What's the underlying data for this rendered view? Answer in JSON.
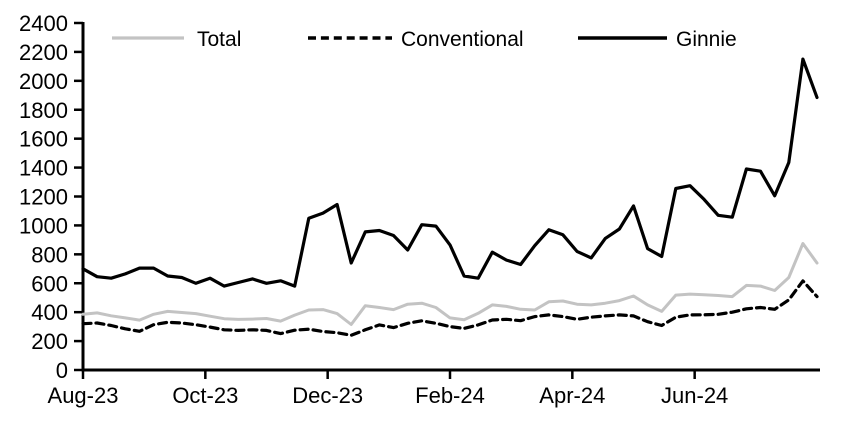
{
  "chart_data": {
    "type": "line",
    "title": "",
    "xlabel": "",
    "ylabel": "",
    "ylim": [
      0,
      2400
    ],
    "y_ticks": [
      0,
      200,
      400,
      600,
      800,
      1000,
      1200,
      1400,
      1600,
      1800,
      2000,
      2200,
      2400
    ],
    "x_tick_labels": [
      "Aug-23",
      "Oct-23",
      "Dec-23",
      "Feb-24",
      "Apr-24",
      "Jun-24"
    ],
    "x_tick_months": [
      0,
      2,
      4,
      6,
      8,
      10
    ],
    "x_axis_months": 12,
    "grid": false,
    "legend_position": "top",
    "series": [
      {
        "name": "Total",
        "style": "solid",
        "color": "#c3c3c3",
        "values": [
          385,
          395,
          375,
          360,
          345,
          385,
          405,
          398,
          390,
          372,
          355,
          350,
          352,
          356,
          338,
          380,
          415,
          418,
          390,
          315,
          445,
          432,
          418,
          455,
          462,
          432,
          360,
          348,
          392,
          450,
          440,
          420,
          415,
          472,
          477,
          455,
          450,
          462,
          480,
          512,
          450,
          405,
          518,
          525,
          520,
          515,
          508,
          585,
          580,
          550,
          640,
          875,
          740
        ]
      },
      {
        "name": "Conventional",
        "style": "dashed",
        "color": "#000000",
        "values": [
          320,
          325,
          308,
          285,
          268,
          313,
          330,
          325,
          313,
          297,
          278,
          274,
          278,
          274,
          252,
          275,
          282,
          266,
          258,
          240,
          278,
          312,
          293,
          323,
          340,
          323,
          300,
          288,
          312,
          346,
          351,
          341,
          369,
          381,
          369,
          351,
          365,
          374,
          381,
          374,
          334,
          308,
          365,
          381,
          382,
          385,
          400,
          423,
          432,
          420,
          485,
          616,
          508
        ]
      },
      {
        "name": "Ginnie",
        "style": "solid",
        "color": "#000000",
        "values": [
          700,
          645,
          635,
          665,
          705,
          705,
          650,
          640,
          600,
          635,
          580,
          605,
          630,
          600,
          617,
          580,
          1050,
          1085,
          1145,
          740,
          955,
          965,
          930,
          830,
          1005,
          995,
          865,
          650,
          635,
          815,
          760,
          730,
          860,
          970,
          935,
          820,
          775,
          910,
          975,
          1135,
          840,
          785,
          1255,
          1275,
          1180,
          1070,
          1057,
          1390,
          1375,
          1205,
          1435,
          2150,
          1885
        ]
      }
    ]
  }
}
